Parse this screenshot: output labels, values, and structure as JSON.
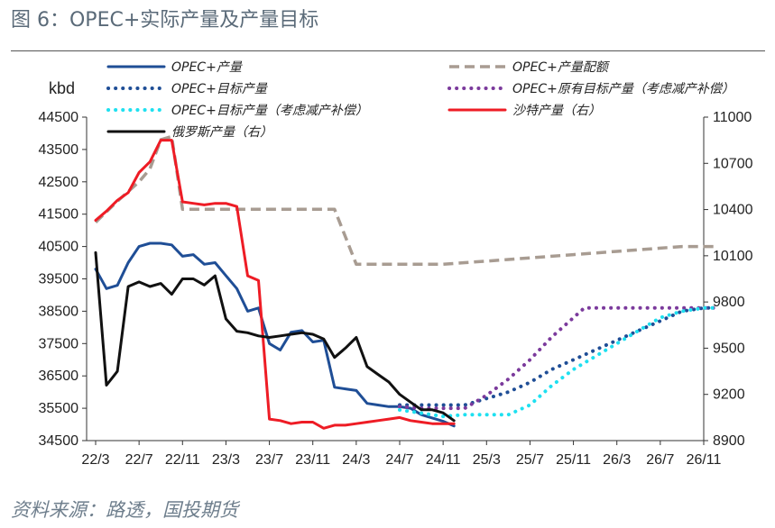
{
  "figure": {
    "title": "图 6：OPEC+实际产量及产量目标",
    "source": "资料来源：路透，国投期货"
  },
  "chart_data": {
    "type": "line",
    "ylabel_left": "kbd",
    "x_ticks": [
      "22/3",
      "22/7",
      "22/11",
      "23/3",
      "23/7",
      "23/11",
      "24/3",
      "24/7",
      "24/11",
      "25/3",
      "25/7",
      "25/11",
      "26/3",
      "26/7",
      "26/11"
    ],
    "y_left": {
      "min": 34500,
      "max": 44500,
      "ticks": [
        34500,
        35500,
        36500,
        37500,
        38500,
        39500,
        40500,
        41500,
        42500,
        43500,
        44500
      ]
    },
    "y_right": {
      "min": 8900,
      "max": 11000,
      "ticks": [
        8900,
        9200,
        9500,
        9800,
        10100,
        10400,
        10700,
        11000
      ]
    },
    "series": [
      {
        "name": "OPEC+产量",
        "axis": "left",
        "style": "solid",
        "color": "#1f4e96",
        "x": [
          0,
          0.25,
          0.5,
          0.75,
          1,
          1.25,
          1.5,
          1.75,
          2,
          2.25,
          2.5,
          2.75,
          3,
          3.25,
          3.5,
          3.75,
          4,
          4.25,
          4.5,
          4.75,
          5,
          5.25,
          5.5,
          5.75,
          6,
          6.25,
          6.5,
          6.75,
          7,
          7.25,
          7.5,
          7.75,
          8,
          8.25
        ],
        "y": [
          39800,
          39200,
          39300,
          40000,
          40500,
          40600,
          40600,
          40550,
          40200,
          40250,
          39950,
          40000,
          39600,
          39200,
          38500,
          38600,
          37500,
          37300,
          37850,
          37900,
          37550,
          37600,
          36150,
          36100,
          36050,
          35650,
          35600,
          35550,
          35550,
          35500,
          35300,
          35200,
          35100,
          34950
        ]
      },
      {
        "name": "OPEC+产量配额",
        "axis": "left",
        "style": "dashed",
        "color": "#a89c92",
        "x": [
          0,
          0.5,
          1,
          1.25,
          1.5,
          1.75,
          2,
          2.5,
          3,
          3.5,
          4,
          4.5,
          5,
          5.5,
          6,
          6.5,
          7,
          7.5,
          8,
          8.5,
          9,
          9.5,
          10,
          10.5,
          11,
          11.5,
          12,
          12.5,
          13,
          13.5,
          14,
          14.25
        ],
        "y": [
          41250,
          41900,
          42500,
          42900,
          43800,
          43900,
          41650,
          41650,
          41650,
          41650,
          41650,
          41650,
          41650,
          41650,
          39950,
          39950,
          39950,
          39950,
          39950,
          40000,
          40050,
          40100,
          40150,
          40200,
          40250,
          40300,
          40350,
          40400,
          40450,
          40500,
          40500,
          40500
        ]
      },
      {
        "name": "OPEC+目标产量",
        "axis": "left",
        "style": "dotted",
        "color": "#1f4e96",
        "x": [
          7,
          7.5,
          8,
          8.5,
          9,
          9.5,
          10,
          10.5,
          11,
          11.5,
          12,
          12.5,
          13,
          13.5,
          14,
          14.25
        ],
        "y": [
          35600,
          35600,
          35600,
          35600,
          35800,
          36000,
          36300,
          36700,
          37000,
          37300,
          37600,
          37900,
          38200,
          38500,
          38600,
          38600
        ]
      },
      {
        "name": "OPEC+原有目标产量（考虑减产补偿）",
        "axis": "left",
        "style": "dotted",
        "color": "#7b3a9c",
        "x": [
          7,
          7.5,
          8,
          8.5,
          9,
          9.5,
          10,
          10.5,
          11,
          11.25,
          11.5,
          12,
          12.5,
          13,
          13.5,
          14,
          14.25
        ],
        "y": [
          35550,
          35500,
          35500,
          35500,
          35900,
          36400,
          37000,
          37700,
          38300,
          38600,
          38600,
          38600,
          38600,
          38600,
          38600,
          38600,
          38600
        ]
      },
      {
        "name": "OPEC+目标产量（考虑减产补偿）",
        "axis": "left",
        "style": "dotted",
        "color": "#1ee0f0",
        "x": [
          7,
          7.5,
          8,
          8.5,
          9,
          9.5,
          10,
          10.5,
          11,
          11.5,
          12,
          12.5,
          13,
          13.5,
          14,
          14.25
        ],
        "y": [
          35450,
          35350,
          35250,
          35300,
          35300,
          35300,
          35600,
          36200,
          36700,
          37100,
          37500,
          37900,
          38300,
          38500,
          38600,
          38600
        ]
      },
      {
        "name": "沙特产量（右）",
        "axis": "right",
        "style": "solid",
        "color": "#ee1c25",
        "x": [
          0,
          0.25,
          0.5,
          0.75,
          1,
          1.25,
          1.5,
          1.75,
          2,
          2.25,
          2.5,
          2.75,
          3,
          3.25,
          3.5,
          3.75,
          4,
          4.25,
          4.5,
          4.75,
          5,
          5.25,
          5.5,
          5.75,
          6,
          6.25,
          6.5,
          6.75,
          7,
          7.25,
          7.5,
          7.75,
          8,
          8.25
        ],
        "y": [
          10330,
          10390,
          10460,
          10510,
          10640,
          10710,
          10850,
          10850,
          10450,
          10440,
          10430,
          10440,
          10440,
          10420,
          9970,
          9940,
          9040,
          9030,
          9010,
          9020,
          9020,
          8980,
          9000,
          9000,
          9010,
          9020,
          9030,
          9040,
          9050,
          9030,
          9020,
          9010,
          9010,
          9010
        ]
      },
      {
        "name": "俄罗斯产量（右）",
        "axis": "right",
        "style": "solid",
        "color": "#111111",
        "x": [
          0,
          0.25,
          0.5,
          0.75,
          1,
          1.25,
          1.5,
          1.75,
          2,
          2.25,
          2.5,
          2.75,
          3,
          3.25,
          3.5,
          3.75,
          4,
          4.25,
          4.5,
          4.75,
          5,
          5.25,
          5.5,
          5.75,
          6,
          6.25,
          6.5,
          6.75,
          7,
          7.25,
          7.5,
          7.75,
          8,
          8.25
        ],
        "y": [
          10120,
          9260,
          9350,
          9900,
          9930,
          9900,
          9920,
          9850,
          9950,
          9950,
          9910,
          9970,
          9690,
          9610,
          9600,
          9580,
          9570,
          9580,
          9590,
          9600,
          9590,
          9560,
          9440,
          9500,
          9570,
          9380,
          9330,
          9280,
          9200,
          9150,
          9100,
          9100,
          9080,
          9030
        ]
      }
    ],
    "legend_placement": "top",
    "grid": false
  }
}
